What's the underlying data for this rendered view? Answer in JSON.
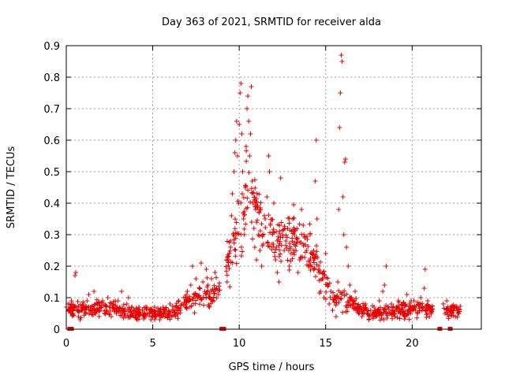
{
  "chart_data": {
    "type": "scatter",
    "title": "Day 363 of 2021, SRMTID for receiver alda",
    "xlabel": "GPS time / hours",
    "ylabel": "SRMTID / TECUs",
    "xlim": [
      0,
      24
    ],
    "ylim": [
      0,
      0.9
    ],
    "xticks": [
      0,
      5,
      10,
      15,
      20
    ],
    "xtick_labels": [
      "0",
      "5",
      "10",
      "15",
      "20"
    ],
    "yticks": [
      0,
      0.1,
      0.2,
      0.3,
      0.4,
      0.5,
      0.6,
      0.7,
      0.8,
      0.9
    ],
    "ytick_labels": [
      "0",
      "0.1",
      "0.2",
      "0.3",
      "0.4",
      "0.5",
      "0.6",
      "0.7",
      "0.8",
      "0.9"
    ],
    "grid": true,
    "marker": "+",
    "color": "#e80000",
    "series": [
      {
        "name": "SRMTID",
        "points": [
          [
            0.0,
            0.07
          ],
          [
            0.1,
            0.08
          ],
          [
            0.2,
            0.06
          ],
          [
            0.3,
            0.09
          ],
          [
            0.4,
            0.05
          ],
          [
            0.5,
            0.17
          ],
          [
            0.55,
            0.18
          ],
          [
            0.6,
            0.07
          ],
          [
            0.7,
            0.04
          ],
          [
            0.8,
            0.03
          ],
          [
            0.9,
            0.06
          ],
          [
            1.0,
            0.08
          ],
          [
            1.1,
            0.05
          ],
          [
            1.2,
            0.09
          ],
          [
            1.3,
            0.11
          ],
          [
            1.4,
            0.07
          ],
          [
            1.5,
            0.06
          ],
          [
            1.6,
            0.12
          ],
          [
            1.7,
            0.05
          ],
          [
            1.8,
            0.08
          ],
          [
            1.9,
            0.04
          ],
          [
            2.0,
            0.07
          ],
          [
            2.1,
            0.09
          ],
          [
            2.2,
            0.05
          ],
          [
            2.3,
            0.06
          ],
          [
            2.4,
            0.1
          ],
          [
            2.5,
            0.07
          ],
          [
            2.6,
            0.04
          ],
          [
            2.7,
            0.08
          ],
          [
            2.8,
            0.06
          ],
          [
            2.9,
            0.05
          ],
          [
            3.0,
            0.09
          ],
          [
            3.1,
            0.07
          ],
          [
            3.2,
            0.12
          ],
          [
            3.3,
            0.06
          ],
          [
            3.4,
            0.05
          ],
          [
            3.5,
            0.08
          ],
          [
            3.6,
            0.1
          ],
          [
            3.7,
            0.04
          ],
          [
            3.8,
            0.07
          ],
          [
            3.9,
            0.06
          ],
          [
            4.0,
            0.05
          ],
          [
            4.1,
            0.03
          ],
          [
            4.2,
            0.07
          ],
          [
            4.3,
            0.05
          ],
          [
            4.4,
            0.06
          ],
          [
            4.5,
            0.04
          ],
          [
            4.6,
            0.07
          ],
          [
            4.7,
            0.05
          ],
          [
            4.8,
            0.06
          ],
          [
            4.9,
            0.03
          ],
          [
            5.0,
            0.05
          ],
          [
            5.1,
            0.07
          ],
          [
            5.2,
            0.04
          ],
          [
            5.3,
            0.06
          ],
          [
            5.4,
            0.03
          ],
          [
            5.5,
            0.05
          ],
          [
            5.6,
            0.07
          ],
          [
            5.7,
            0.04
          ],
          [
            5.8,
            0.06
          ],
          [
            5.9,
            0.05
          ],
          [
            6.0,
            0.08
          ],
          [
            6.1,
            0.04
          ],
          [
            6.2,
            0.06
          ],
          [
            6.3,
            0.07
          ],
          [
            6.4,
            0.05
          ],
          [
            6.5,
            0.09
          ],
          [
            6.6,
            0.06
          ],
          [
            6.7,
            0.08
          ],
          [
            6.8,
            0.1
          ],
          [
            6.9,
            0.07
          ],
          [
            7.0,
            0.12
          ],
          [
            7.1,
            0.09
          ],
          [
            7.2,
            0.14
          ],
          [
            7.3,
            0.2
          ],
          [
            7.4,
            0.11
          ],
          [
            7.5,
            0.16
          ],
          [
            7.6,
            0.1
          ],
          [
            7.7,
            0.13
          ],
          [
            7.8,
            0.21
          ],
          [
            7.9,
            0.15
          ],
          [
            8.0,
            0.12
          ],
          [
            8.1,
            0.19
          ],
          [
            8.2,
            0.14
          ],
          [
            8.3,
            0.1
          ],
          [
            8.4,
            0.16
          ],
          [
            8.5,
            0.12
          ],
          [
            8.6,
            0.18
          ],
          [
            8.7,
            0.13
          ],
          [
            8.8,
            0.11
          ],
          [
            9.3,
            0.15
          ],
          [
            9.4,
            0.22
          ],
          [
            9.5,
            0.28
          ],
          [
            9.55,
            0.36
          ],
          [
            9.6,
            0.43
          ],
          [
            9.65,
            0.3
          ],
          [
            9.7,
            0.5
          ],
          [
            9.75,
            0.56
          ],
          [
            9.8,
            0.6
          ],
          [
            9.85,
            0.66
          ],
          [
            9.9,
            0.55
          ],
          [
            9.95,
            0.4
          ],
          [
            10.0,
            0.65
          ],
          [
            10.05,
            0.75
          ],
          [
            10.1,
            0.78
          ],
          [
            10.15,
            0.62
          ],
          [
            10.2,
            0.5
          ],
          [
            10.25,
            0.35
          ],
          [
            10.3,
            0.3
          ],
          [
            10.35,
            0.45
          ],
          [
            10.4,
            0.58
          ],
          [
            10.45,
            0.7
          ],
          [
            10.5,
            0.74
          ],
          [
            10.55,
            0.66
          ],
          [
            10.6,
            0.55
          ],
          [
            10.65,
            0.62
          ],
          [
            10.7,
            0.77
          ],
          [
            10.75,
            0.47
          ],
          [
            10.8,
            0.4
          ],
          [
            10.85,
            0.32
          ],
          [
            10.9,
            0.26
          ],
          [
            10.95,
            0.38
          ],
          [
            11.0,
            0.22
          ],
          [
            11.1,
            0.3
          ],
          [
            11.2,
            0.25
          ],
          [
            11.3,
            0.2
          ],
          [
            11.4,
            0.27
          ],
          [
            11.5,
            0.35
          ],
          [
            11.6,
            0.42
          ],
          [
            11.7,
            0.55
          ],
          [
            11.75,
            0.5
          ],
          [
            11.8,
            0.33
          ],
          [
            11.9,
            0.27
          ],
          [
            12.0,
            0.4
          ],
          [
            12.1,
            0.22
          ],
          [
            12.2,
            0.18
          ],
          [
            12.3,
            0.15
          ],
          [
            12.4,
            0.48
          ],
          [
            12.5,
            0.3
          ],
          [
            12.6,
            0.25
          ],
          [
            12.7,
            0.28
          ],
          [
            12.8,
            0.32
          ],
          [
            12.9,
            0.2
          ],
          [
            13.0,
            0.24
          ],
          [
            13.1,
            0.35
          ],
          [
            13.2,
            0.3
          ],
          [
            13.3,
            0.27
          ],
          [
            13.4,
            0.18
          ],
          [
            13.5,
            0.22
          ],
          [
            13.6,
            0.38
          ],
          [
            13.7,
            0.33
          ],
          [
            13.8,
            0.29
          ],
          [
            13.9,
            0.25
          ],
          [
            14.0,
            0.2
          ],
          [
            14.1,
            0.3
          ],
          [
            14.2,
            0.24
          ],
          [
            14.3,
            0.22
          ],
          [
            14.4,
            0.47
          ],
          [
            14.45,
            0.6
          ],
          [
            14.5,
            0.35
          ],
          [
            14.6,
            0.18
          ],
          [
            14.7,
            0.12
          ],
          [
            14.8,
            0.16
          ],
          [
            14.9,
            0.1
          ],
          [
            15.0,
            0.24
          ],
          [
            15.1,
            0.14
          ],
          [
            15.2,
            0.08
          ],
          [
            15.3,
            0.12
          ],
          [
            15.4,
            0.06
          ],
          [
            15.5,
            0.1
          ],
          [
            15.6,
            0.04
          ],
          [
            15.7,
            0.15
          ],
          [
            15.75,
            0.38
          ],
          [
            15.8,
            0.64
          ],
          [
            15.85,
            0.75
          ],
          [
            15.9,
            0.87
          ],
          [
            15.95,
            0.85
          ],
          [
            16.0,
            0.42
          ],
          [
            16.05,
            0.3
          ],
          [
            16.1,
            0.53
          ],
          [
            16.15,
            0.54
          ],
          [
            16.2,
            0.26
          ],
          [
            16.3,
            0.2
          ],
          [
            16.4,
            0.14
          ],
          [
            16.5,
            0.1
          ],
          [
            16.6,
            0.08
          ],
          [
            16.7,
            0.12
          ],
          [
            16.8,
            0.06
          ],
          [
            16.9,
            0.05
          ],
          [
            17.0,
            0.07
          ],
          [
            17.1,
            0.04
          ],
          [
            17.2,
            0.06
          ],
          [
            17.3,
            0.08
          ],
          [
            17.4,
            0.05
          ],
          [
            17.5,
            0.03
          ],
          [
            17.6,
            0.06
          ],
          [
            17.7,
            0.05
          ],
          [
            17.8,
            0.07
          ],
          [
            17.9,
            0.04
          ],
          [
            18.0,
            0.06
          ],
          [
            18.1,
            0.09
          ],
          [
            18.2,
            0.05
          ],
          [
            18.3,
            0.12
          ],
          [
            18.4,
            0.14
          ],
          [
            18.5,
            0.2
          ],
          [
            18.6,
            0.07
          ],
          [
            18.7,
            0.05
          ],
          [
            18.8,
            0.08
          ],
          [
            18.9,
            0.06
          ],
          [
            19.0,
            0.04
          ],
          [
            19.1,
            0.07
          ],
          [
            19.2,
            0.09
          ],
          [
            19.3,
            0.05
          ],
          [
            19.4,
            0.06
          ],
          [
            19.5,
            0.08
          ],
          [
            19.6,
            0.04
          ],
          [
            19.7,
            0.11
          ],
          [
            19.8,
            0.06
          ],
          [
            19.9,
            0.05
          ],
          [
            20.0,
            0.07
          ],
          [
            20.1,
            0.09
          ],
          [
            20.2,
            0.06
          ],
          [
            20.3,
            0.05
          ],
          [
            20.4,
            0.08
          ],
          [
            20.5,
            0.1
          ],
          [
            20.6,
            0.07
          ],
          [
            20.7,
            0.13
          ],
          [
            20.75,
            0.19
          ],
          [
            20.8,
            0.06
          ],
          [
            20.9,
            0.09
          ],
          [
            21.0,
            0.04
          ],
          [
            21.1,
            0.05
          ],
          [
            21.8,
            0.08
          ],
          [
            21.9,
            0.05
          ],
          [
            22.0,
            0.09
          ],
          [
            22.1,
            0.04
          ],
          [
            22.2,
            0.06
          ],
          [
            22.3,
            0.05
          ],
          [
            22.4,
            0.07
          ],
          [
            22.5,
            0.04
          ],
          [
            22.6,
            0.06
          ],
          [
            22.7,
            0.05
          ]
        ],
        "band": {
          "centers": [
            [
              0.0,
              0.06
            ],
            [
              2.0,
              0.07
            ],
            [
              4.0,
              0.05
            ],
            [
              6.0,
              0.05
            ],
            [
              7.5,
              0.1
            ],
            [
              8.7,
              0.12
            ],
            [
              9.5,
              0.25
            ],
            [
              10.5,
              0.45
            ],
            [
              11.5,
              0.3
            ],
            [
              12.5,
              0.28
            ],
            [
              13.5,
              0.28
            ],
            [
              14.5,
              0.2
            ],
            [
              15.5,
              0.1
            ],
            [
              16.5,
              0.08
            ],
            [
              17.5,
              0.05
            ],
            [
              19.0,
              0.06
            ],
            [
              20.5,
              0.07
            ],
            [
              21.0,
              0.06
            ]
          ],
          "spread": [
            0.03,
            0.04,
            0.03,
            0.03,
            0.05,
            0.06,
            0.12,
            0.2,
            0.12,
            0.12,
            0.12,
            0.1,
            0.05,
            0.04,
            0.03,
            0.04,
            0.04,
            0.03
          ],
          "count": 900,
          "segments": [
            [
              0.1,
              8.9
            ],
            [
              9.2,
              21.2
            ],
            [
              21.8,
              22.8
            ]
          ]
        }
      }
    ],
    "gap_markers": [
      [
        0.2,
        0.0
      ],
      [
        0.3,
        0.0
      ],
      [
        9.0,
        0.0
      ],
      [
        9.1,
        0.0
      ],
      [
        21.6,
        0.0
      ],
      [
        22.2,
        0.0
      ]
    ]
  }
}
